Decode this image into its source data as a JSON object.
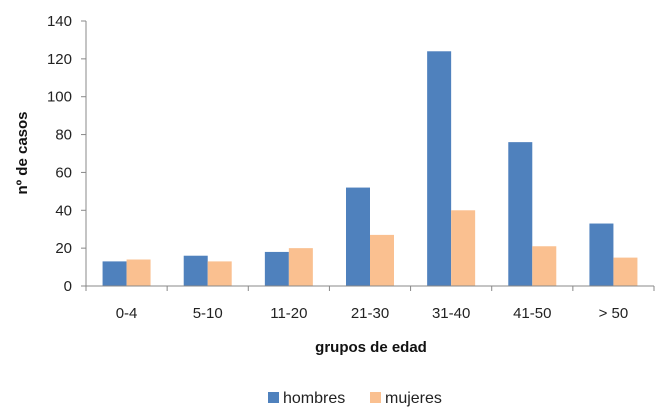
{
  "chart_data": {
    "type": "bar",
    "categories": [
      "0-4",
      "5-10",
      "11-20",
      "21-30",
      "31-40",
      "41-50",
      "> 50"
    ],
    "series": [
      {
        "name": "hombres",
        "color": "#4f81bd",
        "values": [
          13,
          16,
          18,
          52,
          124,
          76,
          33
        ]
      },
      {
        "name": "mujeres",
        "color": "#fac090",
        "values": [
          14,
          13,
          20,
          27,
          40,
          21,
          15
        ]
      }
    ],
    "xlabel": "grupos de edad",
    "ylabel": "nº de casos",
    "ylim": [
      0,
      140
    ],
    "yticks": [
      0,
      20,
      40,
      60,
      80,
      100,
      120,
      140
    ],
    "grid": false,
    "legend_position": "bottom"
  }
}
